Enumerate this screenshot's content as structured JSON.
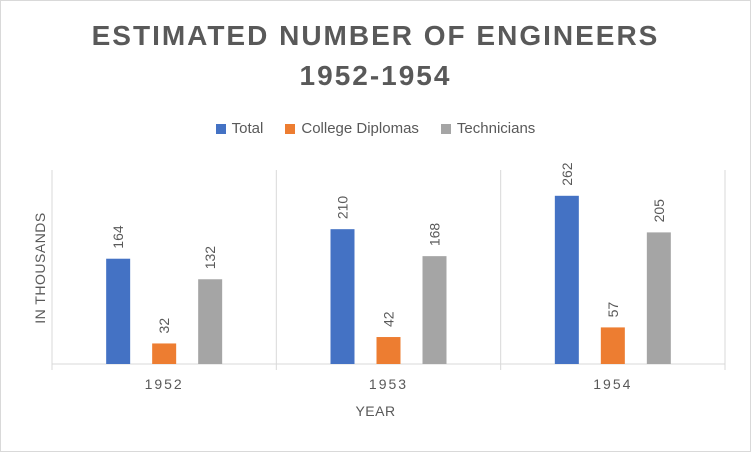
{
  "chart_data": {
    "type": "bar",
    "title_lines": [
      "ESTIMATED NUMBER OF ENGINEERS",
      "1952-1954"
    ],
    "categories": [
      "1952",
      "1953",
      "1954"
    ],
    "series": [
      {
        "name": "Total",
        "color": "#4472c4",
        "values": [
          164,
          210,
          262
        ]
      },
      {
        "name": "College Diplomas",
        "color": "#ed7d31",
        "values": [
          32,
          42,
          57
        ]
      },
      {
        "name": "Technicians",
        "color": "#a5a5a5",
        "values": [
          132,
          168,
          205
        ]
      }
    ],
    "xlabel": "YEAR",
    "ylabel": "IN THOUSANDS",
    "ylim": [
      0,
      300
    ],
    "gridlines": false,
    "legend_position": "top",
    "category_separators": true
  }
}
